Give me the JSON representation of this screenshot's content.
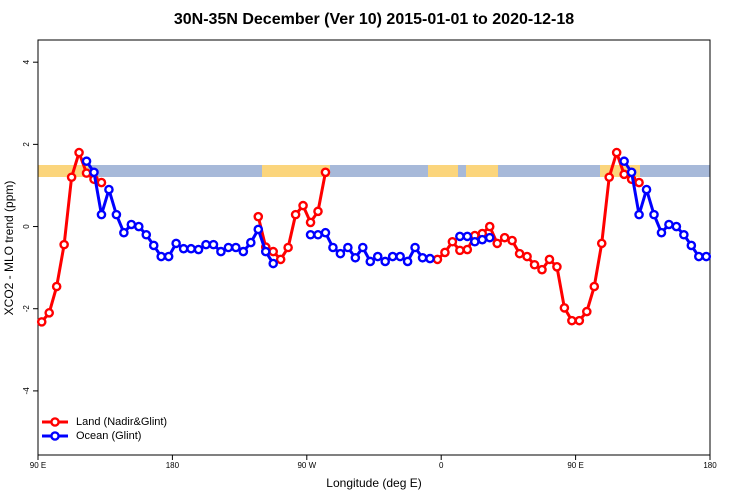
{
  "chart_data": {
    "type": "line",
    "title": "30N-35N December (Ver 10)   2015-01-01 to 2020-12-18",
    "xlabel": "Longitude (deg E)",
    "ylabel": "XCO2 - MLO trend (ppm)",
    "x": [
      92.5,
      97.5,
      102.5,
      107.5,
      112.5,
      117.5,
      122.5,
      127.5,
      132.5,
      137.5,
      142.5,
      147.5,
      152.5,
      157.5,
      162.5,
      167.5,
      172.5,
      177.5,
      182.5,
      187.5,
      192.5,
      197.5,
      202.5,
      207.5,
      212.5,
      217.5,
      222.5,
      227.5,
      232.5,
      237.5,
      242.5,
      247.5,
      252.5,
      257.5,
      262.5,
      267.5,
      272.5,
      277.5,
      282.5,
      287.5,
      292.5,
      297.5,
      302.5,
      307.5,
      312.5,
      317.5,
      322.5,
      327.5,
      332.5,
      337.5,
      342.5,
      347.5,
      352.5,
      357.5,
      362.5,
      367.5,
      372.5,
      377.5,
      382.5,
      387.5,
      392.5,
      397.5,
      402.5,
      407.5,
      412.5,
      417.5,
      422.5,
      427.5,
      432.5,
      437.5,
      442.5,
      447.5,
      452.5,
      457.5,
      462.5,
      467.5,
      472.5,
      477.5,
      482.5,
      487.5,
      492.5,
      497.5,
      502.5,
      507.5,
      512.5,
      517.5,
      522.5,
      527.5,
      532.5,
      537.5
    ],
    "series": [
      {
        "name": "Land (Nadir&Glint)",
        "color": "#ff0000",
        "values": [
          -2.32,
          -2.1,
          -1.46,
          -0.44,
          1.2,
          1.8,
          1.3,
          1.15,
          1.07,
          null,
          null,
          null,
          null,
          null,
          null,
          null,
          null,
          null,
          null,
          null,
          null,
          null,
          null,
          null,
          null,
          null,
          null,
          null,
          null,
          0.24,
          -0.5,
          -0.61,
          -0.8,
          -0.51,
          0.29,
          0.51,
          0.1,
          0.37,
          1.32,
          null,
          null,
          null,
          null,
          null,
          null,
          null,
          null,
          null,
          null,
          null,
          null,
          null,
          null,
          -0.8,
          -0.63,
          -0.37,
          -0.58,
          -0.56,
          -0.22,
          -0.17,
          0,
          -0.41,
          -0.27,
          -0.34,
          -0.66,
          -0.73,
          -0.93,
          -1.05,
          -0.8,
          -0.98,
          -1.98,
          -2.29,
          -2.29,
          -2.07,
          -1.46,
          -0.41,
          1.2,
          1.8,
          1.27,
          1.15,
          1.07,
          null,
          null,
          null,
          null,
          null,
          null,
          null,
          null,
          null
        ]
      },
      {
        "name": "Ocean (Glint)",
        "color": "#0000ff",
        "values": [
          null,
          null,
          null,
          null,
          null,
          null,
          1.59,
          1.32,
          0.29,
          0.9,
          0.29,
          -0.15,
          0.05,
          0,
          -0.2,
          -0.46,
          -0.73,
          -0.73,
          -0.41,
          -0.54,
          -0.54,
          -0.56,
          -0.44,
          -0.44,
          -0.61,
          -0.51,
          -0.51,
          -0.61,
          -0.39,
          -0.07,
          -0.61,
          -0.9,
          null,
          null,
          null,
          null,
          -0.2,
          -0.2,
          -0.15,
          -0.51,
          -0.66,
          -0.51,
          -0.76,
          -0.51,
          -0.85,
          -0.73,
          -0.85,
          -0.73,
          -0.73,
          -0.85,
          -0.51,
          -0.76,
          -0.78,
          null,
          null,
          null,
          -0.24,
          -0.24,
          -0.37,
          -0.32,
          -0.27,
          null,
          null,
          null,
          null,
          null,
          null,
          null,
          null,
          null,
          null,
          null,
          null,
          null,
          null,
          null,
          null,
          null,
          1.59,
          1.32,
          0.29,
          0.9,
          0.29,
          -0.15,
          0.05,
          0,
          -0.2,
          -0.46,
          -0.73,
          -0.73
        ]
      }
    ],
    "xlim": [
      90,
      540
    ],
    "xticks": [
      {
        "value": 90,
        "label": "90 E"
      },
      180,
      {
        "value": 270,
        "label": "90 W"
      },
      {
        "value": 360,
        "label": "0"
      },
      {
        "value": 450,
        "label": "90 E"
      },
      {
        "value": 540,
        "label": "180"
      }
    ],
    "ylim": [
      -5.56,
      4.54
    ],
    "yticks": [
      -4,
      -2,
      0,
      2,
      4
    ],
    "legend": "bottom-left"
  }
}
